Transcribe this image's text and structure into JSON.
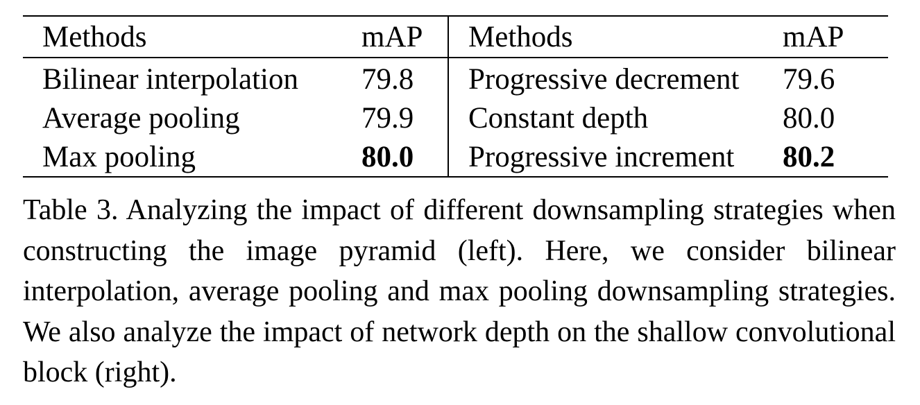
{
  "table": {
    "headers": [
      "Methods",
      "mAP",
      "Methods",
      "mAP"
    ],
    "rows": [
      {
        "left_method": "Bilinear interpolation",
        "left_map": "79.8",
        "right_method": "Progressive decrement",
        "right_map": "79.6"
      },
      {
        "left_method": "Average pooling",
        "left_map": "79.9",
        "right_method": "Constant depth",
        "right_map": "80.0"
      },
      {
        "left_method": "Max pooling",
        "left_map": "80.0",
        "right_method": "Progressive increment",
        "right_map": "80.2"
      }
    ],
    "bold_cells": [
      "rows.2.left_map",
      "rows.2.right_map"
    ]
  },
  "caption": {
    "label": "Table 3.",
    "text": "Analyzing the impact of different downsampling strategies when constructing the image pyramid (left). Here, we consider bilinear interpolation, average pooling and max pooling downsampling strategies. We also analyze the impact of network depth on the shallow convolutional block (right)."
  }
}
